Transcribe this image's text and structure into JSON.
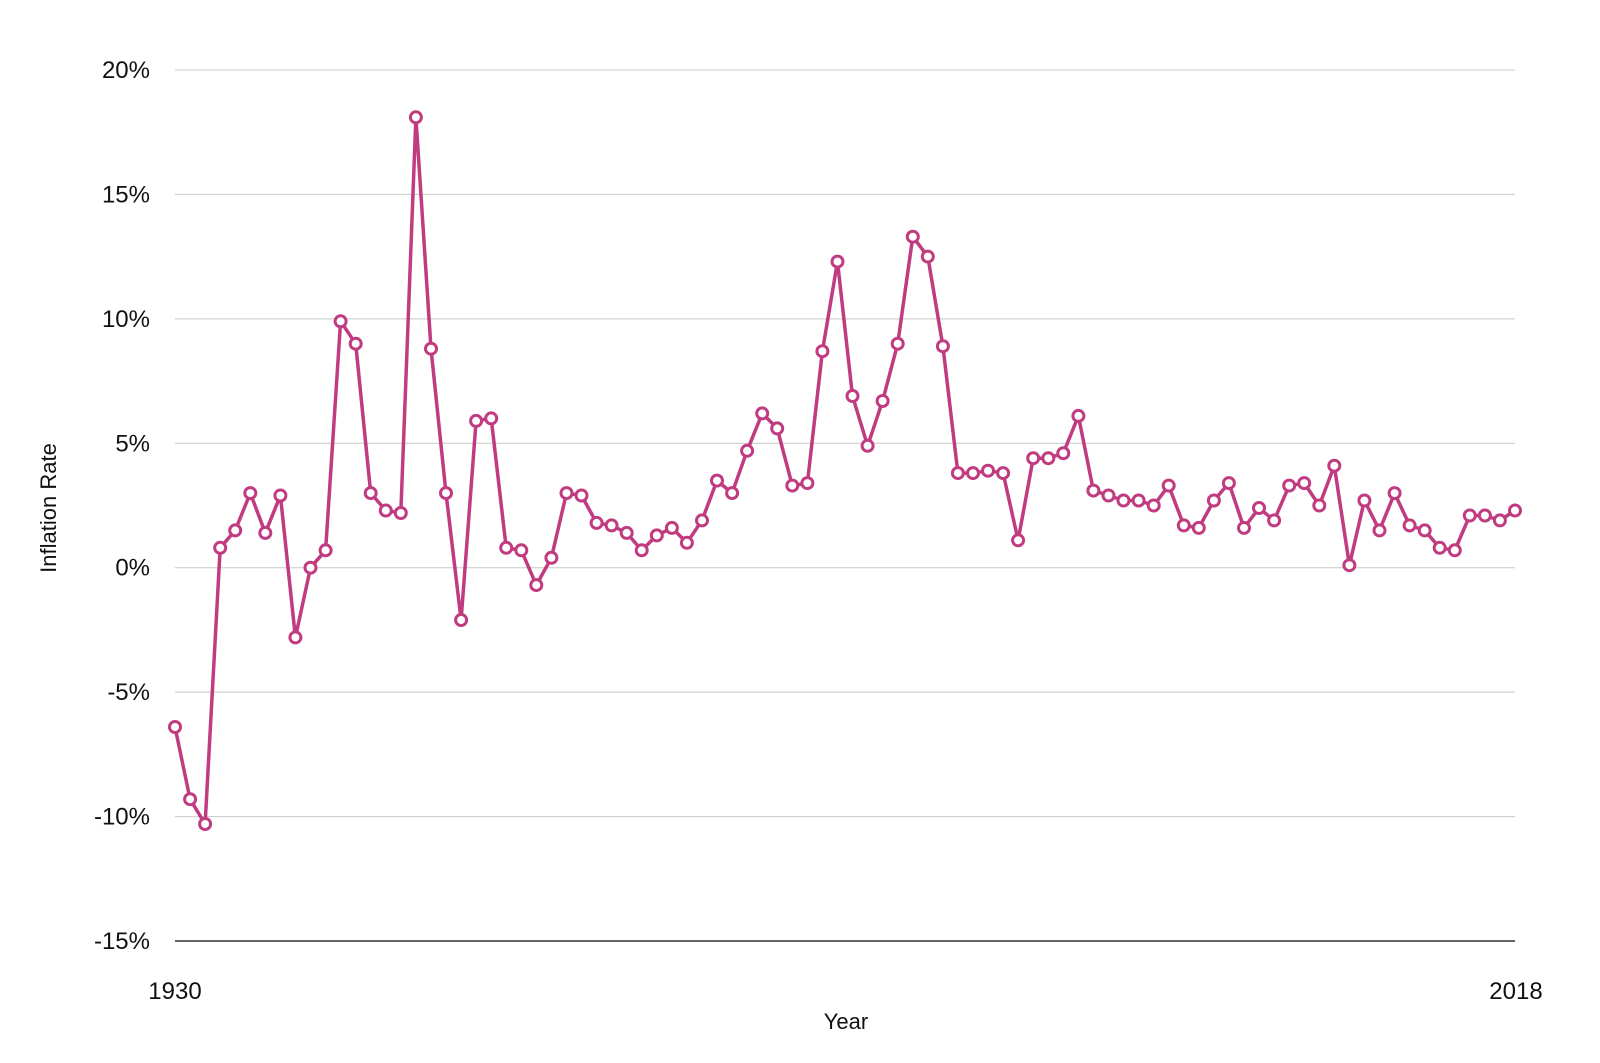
{
  "chart_data": {
    "type": "line",
    "title": "",
    "xlabel": "Year",
    "ylabel": "Inflation Rate",
    "x_tick_labels": [
      "1930",
      "2018"
    ],
    "y_tick_labels": [
      "20%",
      "15%",
      "10%",
      "5%",
      "0%",
      "-5%",
      "-10%",
      "-15%"
    ],
    "y_ticks": [
      20,
      15,
      10,
      5,
      0,
      -5,
      -10,
      -15
    ],
    "xlim": [
      1929,
      2018
    ],
    "ylim": [
      -15,
      20
    ],
    "grid": true,
    "legend": "none",
    "series": [
      {
        "color": "#c13b80",
        "x": [
          1929,
          1930,
          1931,
          1932,
          1933,
          1934,
          1935,
          1936,
          1937,
          1938,
          1939,
          1940,
          1941,
          1942,
          1943,
          1944,
          1945,
          1946,
          1947,
          1948,
          1949,
          1950,
          1951,
          1952,
          1953,
          1954,
          1955,
          1956,
          1957,
          1958,
          1959,
          1960,
          1961,
          1962,
          1963,
          1964,
          1965,
          1966,
          1967,
          1968,
          1969,
          1970,
          1971,
          1972,
          1973,
          1974,
          1975,
          1976,
          1977,
          1978,
          1979,
          1980,
          1981,
          1982,
          1983,
          1984,
          1985,
          1986,
          1987,
          1988,
          1989,
          1990,
          1991,
          1992,
          1993,
          1994,
          1995,
          1996,
          1997,
          1998,
          1999,
          2000,
          2001,
          2002,
          2003,
          2004,
          2005,
          2006,
          2007,
          2008,
          2009,
          2010,
          2011,
          2012,
          2013,
          2014,
          2015,
          2016,
          2017,
          2018
        ],
        "values": [
          -6.4,
          -9.3,
          -10.3,
          0.8,
          1.5,
          3.0,
          1.4,
          2.9,
          -2.8,
          0.0,
          0.7,
          9.9,
          9.0,
          3.0,
          2.3,
          2.2,
          18.1,
          8.8,
          3.0,
          -2.1,
          5.9,
          6.0,
          0.8,
          0.7,
          -0.7,
          0.4,
          3.0,
          2.9,
          1.8,
          1.7,
          1.4,
          0.7,
          1.3,
          1.6,
          1.0,
          1.9,
          3.5,
          3.0,
          4.7,
          6.2,
          5.6,
          3.3,
          3.4,
          8.7,
          12.3,
          6.9,
          4.9,
          6.7,
          9.0,
          13.3,
          12.5,
          8.9,
          3.8,
          3.8,
          3.9,
          3.8,
          1.1,
          4.4,
          4.4,
          4.6,
          6.1,
          3.1,
          2.9,
          2.7,
          2.7,
          2.5,
          3.3,
          1.7,
          1.6,
          2.7,
          3.4,
          1.6,
          2.4,
          1.9,
          3.3,
          3.4,
          2.5,
          4.1,
          0.1,
          2.7,
          1.5,
          3.0,
          1.7,
          1.5,
          0.8,
          0.7,
          2.1,
          2.1,
          1.9,
          2.3
        ]
      }
    ]
  }
}
